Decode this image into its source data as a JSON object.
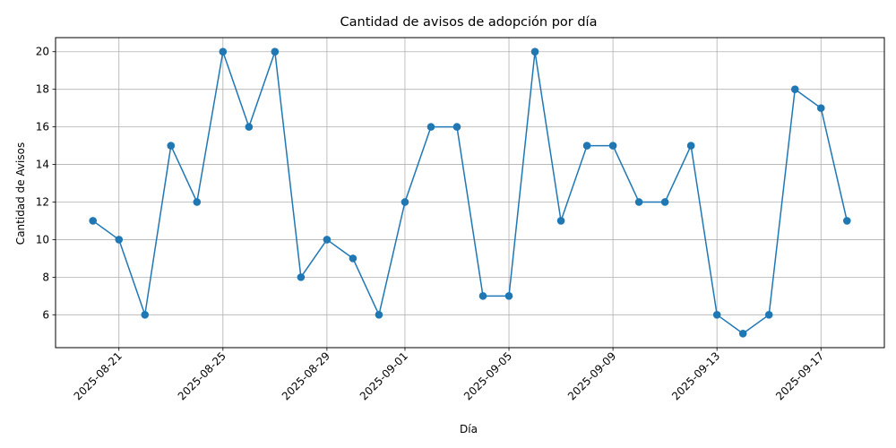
{
  "chart_data": {
    "type": "line",
    "title": "Cantidad de avisos de adopción por día",
    "xlabel": "Día",
    "ylabel": "Cantidad de Avisos",
    "x": [
      "2025-08-20",
      "2025-08-21",
      "2025-08-22",
      "2025-08-23",
      "2025-08-24",
      "2025-08-25",
      "2025-08-26",
      "2025-08-27",
      "2025-08-28",
      "2025-08-29",
      "2025-08-30",
      "2025-08-31",
      "2025-09-01",
      "2025-09-02",
      "2025-09-03",
      "2025-09-04",
      "2025-09-05",
      "2025-09-06",
      "2025-09-07",
      "2025-09-08",
      "2025-09-09",
      "2025-09-10",
      "2025-09-11",
      "2025-09-12",
      "2025-09-13",
      "2025-09-14",
      "2025-09-15",
      "2025-09-16",
      "2025-09-17",
      "2025-09-18"
    ],
    "values": [
      11,
      10,
      6,
      15,
      12,
      20,
      16,
      20,
      8,
      10,
      9,
      6,
      12,
      16,
      16,
      7,
      7,
      20,
      11,
      15,
      15,
      12,
      12,
      15,
      6,
      5,
      6,
      18,
      17,
      11
    ],
    "x_ticks": [
      "2025-08-21",
      "2025-08-25",
      "2025-08-29",
      "2025-09-01",
      "2025-09-05",
      "2025-09-09",
      "2025-09-13",
      "2025-09-17"
    ],
    "y_ticks": [
      6,
      8,
      10,
      12,
      14,
      16,
      18,
      20
    ],
    "ylim": [
      4.25,
      20.75
    ],
    "xlim": [
      "2025-08-18T13:30",
      "2025-09-19T10:30"
    ],
    "grid": true,
    "line_color": "#1f77b4",
    "marker": "circle"
  }
}
